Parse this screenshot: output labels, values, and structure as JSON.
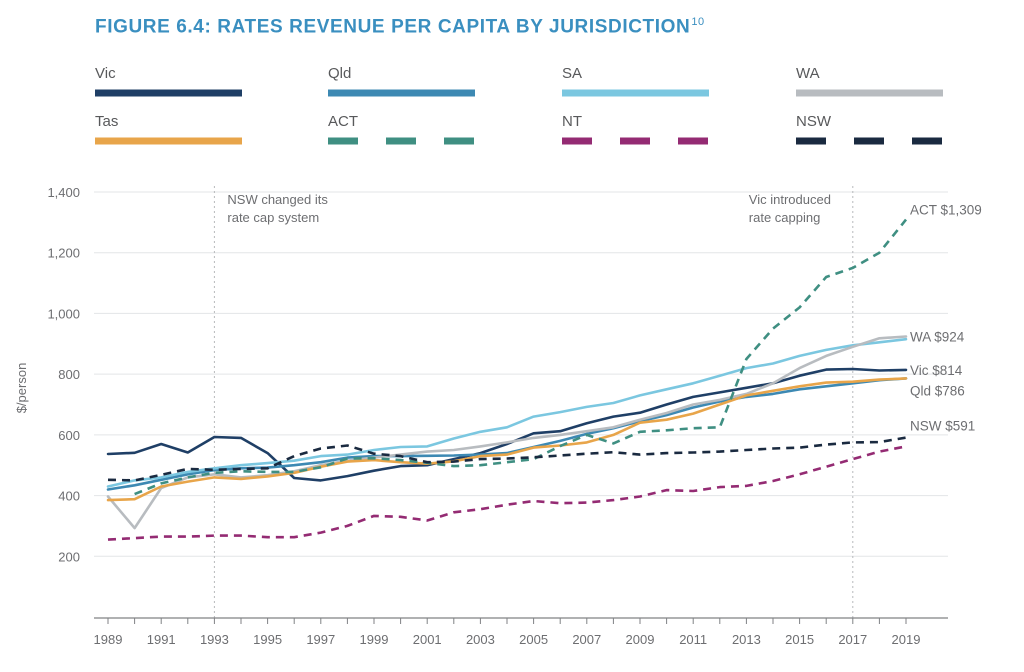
{
  "title": "FIGURE 6.4: RATES REVENUE PER CAPITA BY JURISDICTION",
  "title_superscript": "10",
  "chart_data": {
    "type": "line",
    "ylabel": "$/person",
    "xlabel": "",
    "ylim": [
      200,
      1400
    ],
    "xlim": [
      1989,
      2019
    ],
    "y_ticks": [
      "200",
      "400",
      "600",
      "800",
      "1,000",
      "1,200",
      "1,400"
    ],
    "x_ticks": [
      "1989",
      "1991",
      "1993",
      "1995",
      "1997",
      "1999",
      "2001",
      "2003",
      "2005",
      "2007",
      "2009",
      "2011",
      "2013",
      "2015",
      "2017",
      "2019"
    ],
    "legend_placement": "top",
    "series": [
      {
        "name": "Vic",
        "color": "#1f3f66",
        "dash": false,
        "x": [
          1989,
          1990,
          1991,
          1992,
          1993,
          1994,
          1995,
          1996,
          1997,
          1998,
          1999,
          2000,
          2001,
          2002,
          2003,
          2004,
          2005,
          2006,
          2007,
          2008,
          2009,
          2010,
          2011,
          2012,
          2013,
          2014,
          2015,
          2016,
          2017,
          2018,
          2019
        ],
        "values": [
          537,
          541,
          570,
          542,
          593,
          590,
          540,
          458,
          450,
          464,
          482,
          497,
          500,
          520,
          540,
          570,
          605,
          612,
          638,
          660,
          673,
          700,
          725,
          740,
          755,
          770,
          795,
          815,
          817,
          812,
          814
        ]
      },
      {
        "name": "Qld",
        "color": "#3d89b3",
        "dash": false,
        "x": [
          1989,
          1990,
          1991,
          1992,
          1993,
          1994,
          1995,
          1996,
          1997,
          1998,
          1999,
          2000,
          2001,
          2002,
          2003,
          2004,
          2005,
          2006,
          2007,
          2008,
          2009,
          2010,
          2011,
          2012,
          2013,
          2014,
          2015,
          2016,
          2017,
          2018,
          2019
        ],
        "values": [
          420,
          434,
          452,
          470,
          484,
          490,
          492,
          500,
          510,
          525,
          530,
          530,
          531,
          532,
          535,
          540,
          560,
          580,
          603,
          622,
          645,
          665,
          690,
          710,
          725,
          735,
          750,
          760,
          770,
          780,
          786
        ]
      },
      {
        "name": "SA",
        "color": "#7bc7e0",
        "dash": false,
        "x": [
          1989,
          1990,
          1991,
          1992,
          1993,
          1994,
          1995,
          1996,
          1997,
          1998,
          1999,
          2000,
          2001,
          2002,
          2003,
          2004,
          2005,
          2006,
          2007,
          2008,
          2009,
          2010,
          2011,
          2012,
          2013,
          2014,
          2015,
          2016,
          2017,
          2018,
          2019
        ],
        "values": [
          430,
          450,
          460,
          478,
          490,
          500,
          507,
          515,
          530,
          535,
          550,
          560,
          562,
          588,
          610,
          625,
          660,
          675,
          692,
          705,
          730,
          750,
          770,
          795,
          820,
          835,
          860,
          880,
          895,
          905,
          915
        ]
      },
      {
        "name": "WA",
        "color": "#b8bcc0",
        "dash": false,
        "x": [
          1989,
          1990,
          1991,
          1992,
          1993,
          1994,
          1995,
          1996,
          1997,
          1998,
          1999,
          2000,
          2001,
          2002,
          2003,
          2004,
          2005,
          2006,
          2007,
          2008,
          2009,
          2010,
          2011,
          2012,
          2013,
          2014,
          2015,
          2016,
          2017,
          2018,
          2019
        ],
        "values": [
          397,
          293,
          425,
          460,
          470,
          460,
          467,
          480,
          500,
          515,
          525,
          535,
          545,
          550,
          562,
          575,
          590,
          600,
          612,
          625,
          650,
          672,
          700,
          715,
          735,
          770,
          820,
          860,
          890,
          918,
          924
        ]
      },
      {
        "name": "Tas",
        "color": "#e8a54a",
        "dash": false,
        "x": [
          1989,
          1990,
          1991,
          1992,
          1993,
          1994,
          1995,
          1996,
          1997,
          1998,
          1999,
          2000,
          2001,
          2002,
          2003,
          2004,
          2005,
          2006,
          2007,
          2008,
          2009,
          2010,
          2011,
          2012,
          2013,
          2014,
          2015,
          2016,
          2017,
          2018,
          2019
        ],
        "values": [
          385,
          388,
          430,
          446,
          460,
          455,
          463,
          475,
          495,
          512,
          517,
          510,
          505,
          513,
          530,
          535,
          558,
          565,
          575,
          600,
          640,
          650,
          670,
          700,
          730,
          745,
          760,
          772,
          775,
          782,
          786
        ]
      },
      {
        "name": "ACT",
        "color": "#3f8f82",
        "dash": true,
        "x": [
          1990,
          1991,
          1992,
          1993,
          1994,
          1995,
          1996,
          1997,
          1998,
          1999,
          2000,
          2001,
          2002,
          2003,
          2004,
          2005,
          2006,
          2007,
          2008,
          2009,
          2010,
          2011,
          2012,
          2013,
          2014,
          2015,
          2016,
          2017,
          2018,
          2019
        ],
        "values": [
          405,
          440,
          460,
          475,
          480,
          478,
          478,
          493,
          522,
          523,
          517,
          508,
          497,
          500,
          510,
          520,
          563,
          600,
          572,
          610,
          615,
          622,
          625,
          850,
          950,
          1020,
          1120,
          1150,
          1200,
          1309
        ]
      },
      {
        "name": "NT",
        "color": "#942b73",
        "dash": true,
        "x": [
          1989,
          1990,
          1991,
          1992,
          1993,
          1994,
          1995,
          1996,
          1997,
          1998,
          1999,
          2000,
          2001,
          2002,
          2003,
          2004,
          2005,
          2006,
          2007,
          2008,
          2009,
          2010,
          2011,
          2012,
          2013,
          2014,
          2015,
          2016,
          2017,
          2018,
          2019
        ],
        "values": [
          255,
          260,
          265,
          265,
          268,
          268,
          263,
          263,
          278,
          300,
          333,
          330,
          318,
          345,
          355,
          370,
          382,
          375,
          377,
          385,
          397,
          418,
          415,
          428,
          432,
          448,
          470,
          495,
          520,
          545,
          562
        ]
      },
      {
        "name": "NSW",
        "color": "#1a2a40",
        "dash": true,
        "x": [
          1989,
          1990,
          1991,
          1992,
          1993,
          1994,
          1995,
          1996,
          1997,
          1998,
          1999,
          2000,
          2001,
          2002,
          2003,
          2004,
          2005,
          2006,
          2007,
          2008,
          2009,
          2010,
          2011,
          2012,
          2013,
          2014,
          2015,
          2016,
          2017,
          2018,
          2019
        ],
        "values": [
          452,
          450,
          468,
          488,
          485,
          488,
          490,
          530,
          555,
          565,
          538,
          530,
          510,
          512,
          520,
          522,
          526,
          532,
          538,
          543,
          535,
          540,
          542,
          545,
          550,
          555,
          558,
          568,
          575,
          576,
          591
        ]
      }
    ],
    "end_labels": [
      {
        "series": "ACT",
        "text": "ACT $1,309"
      },
      {
        "series": "WA",
        "text": "WA $924"
      },
      {
        "series": "Vic",
        "text": "Vic $814"
      },
      {
        "series": "Qld",
        "text": "Qld $786"
      },
      {
        "series": "NSW",
        "text": "NSW $591"
      }
    ],
    "annotations": [
      {
        "x": 1993,
        "lines": [
          "NSW changed its",
          "rate cap system"
        ]
      },
      {
        "x": 2017,
        "lines": [
          "Vic introduced",
          "rate capping"
        ]
      }
    ]
  }
}
